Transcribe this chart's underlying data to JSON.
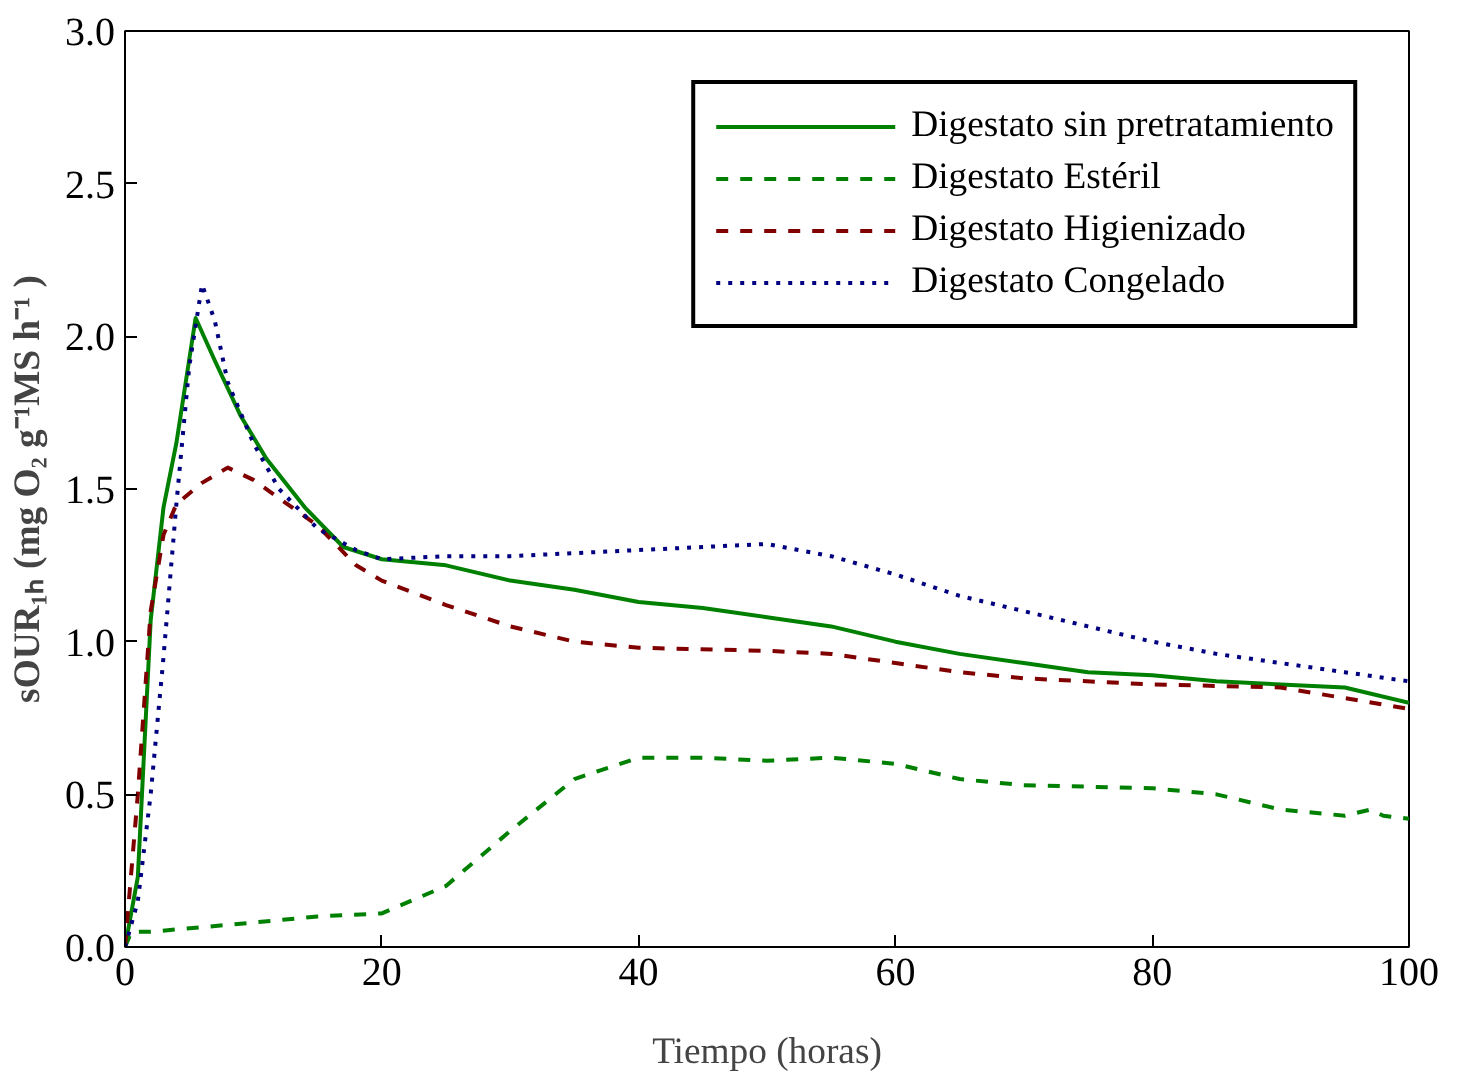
{
  "chart_data": {
    "type": "line",
    "xlabel": "Tiempo (horas)",
    "ylabel": "sOUR₁ₕ (mg O₂ g⁻¹MS h⁻¹ )",
    "xlim": [
      0,
      100
    ],
    "ylim": [
      0,
      3.0
    ],
    "xticks": [
      0,
      20,
      40,
      60,
      80,
      100
    ],
    "yticks": [
      {
        "value": 0,
        "label": "0.0"
      },
      {
        "value": 0.5,
        "label": "0.5"
      },
      {
        "value": 1,
        "label": "1.0"
      },
      {
        "value": 1.5,
        "label": "1.5"
      },
      {
        "value": 2,
        "label": "2.0"
      },
      {
        "value": 2.5,
        "label": "2.5"
      },
      {
        "value": 3,
        "label": "3.0"
      }
    ],
    "grid": false,
    "legend": "top right",
    "marker": "none",
    "series": [
      {
        "name": "Digestato sin pretratamiento",
        "color": "#008000",
        "line_style": "solid",
        "x": [
          0,
          1,
          2,
          3,
          4,
          5.5,
          7,
          9,
          11,
          14,
          17,
          20,
          25,
          30,
          35,
          40,
          45,
          50,
          55,
          60,
          65,
          70,
          75,
          80,
          85,
          90,
          95,
          100
        ],
        "values": [
          0,
          0.23,
          1.07,
          1.44,
          1.65,
          2.06,
          1.92,
          1.74,
          1.6,
          1.44,
          1.31,
          1.27,
          1.25,
          1.2,
          1.17,
          1.13,
          1.11,
          1.08,
          1.05,
          1.0,
          0.96,
          0.93,
          0.9,
          0.89,
          0.87,
          0.86,
          0.85,
          0.8
        ]
      },
      {
        "name": "Digestato Estéril",
        "color": "#008000",
        "line_style": "dashed",
        "x": [
          0,
          0.5,
          2,
          10,
          15,
          20,
          25,
          30,
          35,
          40,
          45,
          50,
          55,
          60,
          65,
          70,
          80,
          85,
          90,
          95,
          97,
          98,
          100
        ],
        "values": [
          0,
          0.05,
          0.05,
          0.08,
          0.1,
          0.11,
          0.2,
          0.38,
          0.55,
          0.62,
          0.62,
          0.61,
          0.62,
          0.6,
          0.55,
          0.53,
          0.52,
          0.5,
          0.45,
          0.43,
          0.45,
          0.43,
          0.42
        ]
      },
      {
        "name": "Digestato Higienizado",
        "color": "#800000",
        "line_style": "dashed",
        "x": [
          0,
          1,
          2,
          3,
          4,
          6,
          8,
          10,
          12,
          15,
          18,
          20,
          25,
          30,
          35,
          40,
          50,
          55,
          60,
          65,
          70,
          80,
          90,
          100
        ],
        "values": [
          0,
          0.5,
          1.1,
          1.35,
          1.45,
          1.52,
          1.57,
          1.53,
          1.47,
          1.38,
          1.25,
          1.2,
          1.12,
          1.05,
          1.0,
          0.98,
          0.97,
          0.96,
          0.93,
          0.9,
          0.88,
          0.86,
          0.85,
          0.78
        ]
      },
      {
        "name": "Digestato Congelado",
        "color": "#000080",
        "line_style": "dotted",
        "x": [
          0,
          1,
          2,
          3,
          4,
          5,
          6,
          7,
          8,
          10,
          12,
          15,
          18,
          20,
          25,
          30,
          35,
          40,
          45,
          50,
          55,
          60,
          65,
          70,
          75,
          80,
          85,
          90,
          95,
          100
        ],
        "values": [
          0,
          0.15,
          0.5,
          0.95,
          1.45,
          1.9,
          2.17,
          2.05,
          1.85,
          1.65,
          1.5,
          1.37,
          1.3,
          1.27,
          1.28,
          1.28,
          1.29,
          1.3,
          1.31,
          1.32,
          1.28,
          1.22,
          1.15,
          1.1,
          1.05,
          1.0,
          0.96,
          0.93,
          0.9,
          0.87
        ]
      }
    ]
  }
}
